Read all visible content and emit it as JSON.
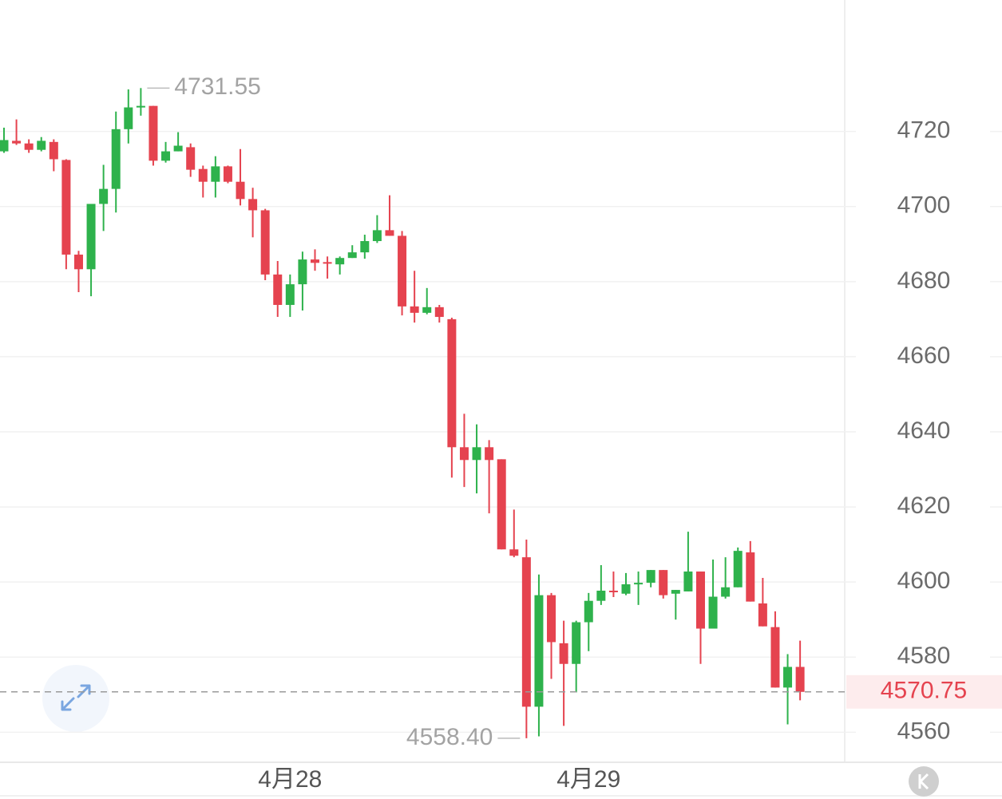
{
  "chart_data": {
    "type": "candlestick",
    "categories": [
      null,
      null,
      null,
      null,
      null,
      null,
      null,
      null,
      null,
      null,
      null,
      null,
      null,
      null,
      null,
      null,
      null,
      null,
      null,
      null,
      null,
      null,
      null,
      "4月28",
      null,
      null,
      null,
      null,
      null,
      null,
      null,
      null,
      null,
      null,
      null,
      null,
      null,
      null,
      null,
      null,
      null,
      null,
      null,
      null,
      null,
      null,
      null,
      "4月29",
      null,
      null,
      null,
      null,
      null,
      null,
      null,
      null,
      null,
      null,
      null,
      null,
      null,
      null,
      null,
      null,
      null
    ],
    "open": [
      4714.7,
      4717.5,
      4716.8,
      4715.1,
      4717.2,
      4712.4,
      4687.2,
      4683.3,
      4700.7,
      4704.7,
      4720.6,
      4726.4,
      4726.8,
      4712.2,
      4714.7,
      4715.8,
      4710.0,
      4706.6,
      4710.7,
      4706.6,
      4702.0,
      4699.0,
      4681.9,
      4673.8,
      4679.3,
      4685.9,
      4685.2,
      4684.6,
      4686.3,
      4687.8,
      4690.8,
      4693.7,
      4692.2,
      4673.4,
      4671.7,
      4673.2,
      4670.0,
      4635.9,
      4632.5,
      4635.9,
      4632.7,
      4608.7,
      4606.6,
      4566.8,
      4596.5,
      4583.7,
      4578.2,
      4589.3,
      4595.0,
      4597.7,
      4596.9,
      4599.4,
      4599.8,
      4603.2,
      4596.9,
      4597.5,
      4602.8,
      4587.6,
      4596.1,
      4598.6,
      4607.9,
      4594.3,
      4588.0,
      4571.9,
      4577.4
    ],
    "high": [
      4721,
      4723.2,
      4717.9,
      4718.5,
      4717.9,
      4712.6,
      4688.2,
      4700.7,
      4711.1,
      4725.3,
      4731.2,
      4731.55,
      4726.8,
      4717.2,
      4719.8,
      4716.8,
      4710.9,
      4713.4,
      4710.9,
      4715.3,
      4705,
      4699.4,
      4685.5,
      4681.9,
      4688,
      4688.6,
      4686.7,
      4686.7,
      4689.7,
      4692.5,
      4697.7,
      4703,
      4693.5,
      4682.9,
      4678.3,
      4673.8,
      4670.4,
      4644.8,
      4642,
      4637.8,
      4632.7,
      4619.3,
      4611.3,
      4602,
      4597.1,
      4589.7,
      4589.7,
      4597.1,
      4604.5,
      4602.8,
      4602.4,
      4602.8,
      4603.2,
      4603.2,
      4597.9,
      4613.4,
      4602.8,
      4606,
      4606.6,
      4609.2,
      4610.9,
      4601.1,
      4592.2,
      4580.8,
      4584.4
    ],
    "low": [
      4714.3,
      4716.4,
      4714.3,
      4714.7,
      4709.4,
      4683.3,
      4677.2,
      4676.1,
      4693.5,
      4698.4,
      4716.8,
      4724.2,
      4710.9,
      4711.7,
      4714.7,
      4707.9,
      4702.4,
      4702.4,
      4706.2,
      4700.3,
      4691.8,
      4680.4,
      4670.6,
      4670.6,
      4672.3,
      4682.9,
      4680.8,
      4681.9,
      4686.3,
      4686.1,
      4690.3,
      4692.2,
      4671,
      4669.1,
      4671.3,
      4669.1,
      4627.8,
      4625.3,
      4623.6,
      4618.3,
      4608.7,
      4606.6,
      4558.4,
      4558.9,
      4574.2,
      4561.7,
      4570.6,
      4581.6,
      4593.9,
      4596,
      4596.5,
      4593.9,
      4598.6,
      4595.6,
      4590,
      4597.5,
      4578.2,
      4587.6,
      4595.6,
      4598.6,
      4594.8,
      4588.2,
      4571.9,
      4562.1,
      4568.5
    ],
    "close": [
      4717.7,
      4716.8,
      4715.1,
      4717.5,
      4712.6,
      4687.2,
      4683.3,
      4700.7,
      4704.7,
      4720.6,
      4726.4,
      4726.8,
      4712.2,
      4714.7,
      4716.2,
      4709.8,
      4706.6,
      4710.7,
      4706.6,
      4702,
      4699,
      4681.9,
      4673.8,
      4679.3,
      4685.9,
      4685,
      4684.8,
      4686.3,
      4687.8,
      4690.8,
      4693.7,
      4692.2,
      4673.4,
      4671.7,
      4673.2,
      4670.6,
      4635.9,
      4632.5,
      4635.9,
      4632.5,
      4608.7,
      4607,
      4566.8,
      4596.5,
      4584,
      4578.2,
      4589.3,
      4595,
      4597.7,
      4597.3,
      4599.4,
      4599.8,
      4603.2,
      4596.5,
      4597.9,
      4602.8,
      4587.6,
      4596.1,
      4598.6,
      4608.3,
      4594.8,
      4588.2,
      4571.9,
      4577.4,
      4570.75
    ],
    "up_color": "#2eb24c",
    "down_color": "#e5434f",
    "ylim": [
      4552,
      4755
    ],
    "yticks": [
      4560,
      4580,
      4600,
      4620,
      4640,
      4660,
      4680,
      4700,
      4720
    ],
    "grid": true,
    "max_annotation": {
      "value": 4731.55,
      "label": "4731.55"
    },
    "min_annotation": {
      "value": 4558.4,
      "label": "4558.40"
    },
    "last_price": 4570.75
  }
}
